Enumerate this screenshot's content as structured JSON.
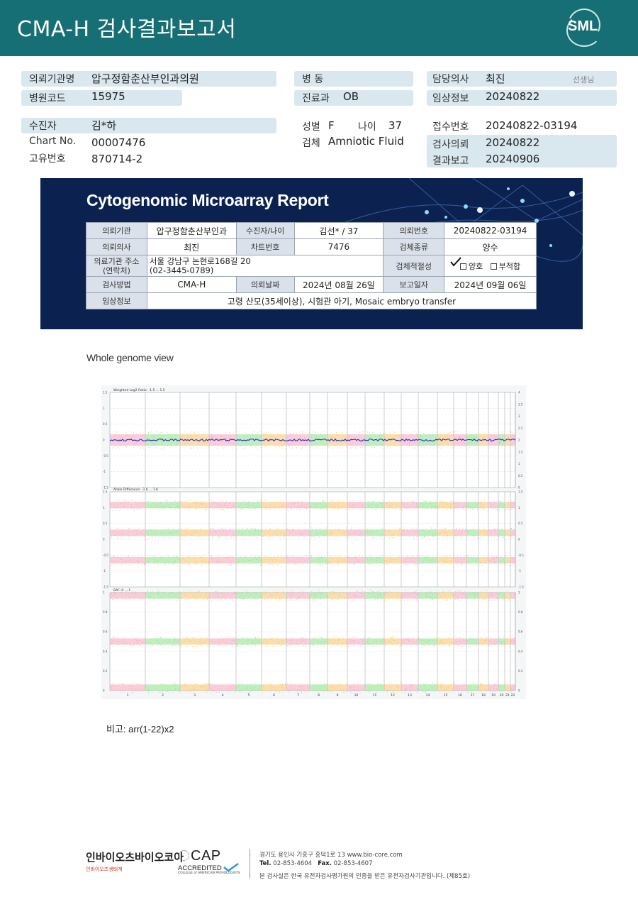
{
  "header": {
    "title": "CMA-H 검사결과보고서",
    "logo": "SML"
  },
  "patient": {
    "institution_label": "의뢰기관명",
    "institution": "압구정함춘산부인과의원",
    "hospital_code_label": "병원코드",
    "hospital_code": "15975",
    "ward_label": "병 동",
    "ward": "",
    "dept_label": "진료과",
    "dept": "OB",
    "doctor_label": "담당의사",
    "doctor": "최진",
    "doctor_suffix": "선생님",
    "clinical_label": "임상정보",
    "clinical": "20240822",
    "name_label": "수진자",
    "name": "김*하",
    "chart_label": "Chart No.",
    "chart_no": "00007476",
    "unique_label": "고유번호",
    "unique_no": "870714-2",
    "sex_label": "성별",
    "sex": "F",
    "age_label": "나이",
    "age": "37",
    "specimen_label": "검체",
    "specimen": "Amniotic Fluid",
    "receipt_label": "접수번호",
    "receipt_no": "20240822-03194",
    "request_label": "검사의뢰",
    "request_date": "20240822",
    "result_label": "결과보고",
    "result_date": "20240906"
  },
  "report": {
    "title": "Cytogenomic Microarray Report",
    "institution_label": "의뢰기관",
    "institution": "압구정함춘산부인과",
    "patient_label": "수진자/나이",
    "patient": "김선* / 37",
    "request_no_label": "의뢰번호",
    "request_no": "20240822-03194",
    "doctor_label": "의뢰의사",
    "doctor": "최진",
    "chart_label": "차트번호",
    "chart": "7476",
    "specimen_label": "검체종류",
    "specimen": "양수",
    "address_label": "의료기관 주소",
    "address_label2": "(연락처)",
    "address": "서울 강남구 논현로168길 20",
    "phone": "(02-3445-0789)",
    "adequacy_label": "검체적절성",
    "adequacy_good": "양호",
    "adequacy_bad": "부적합",
    "method_label": "검사방법",
    "method": "CMA-H",
    "request_date_label": "의뢰날짜",
    "request_date": "2024년 08월 26일",
    "report_date_label": "보고일자",
    "report_date": "2024년 09월 06일",
    "clinical_label": "임상정보",
    "clinical": "고령 산모(35세이상), 시험관 아기, Mosaic embryo transfer"
  },
  "section": {
    "title": "Whole genome view"
  },
  "chart_data": {
    "type": "scatter",
    "panels": [
      {
        "label": "Weighted Log2 Ratio: -1.5 ... 1.5",
        "ylim": [
          -1.5,
          1.5
        ],
        "yticks": [
          "1.5",
          "1",
          "0.5",
          "0",
          "-0.5",
          "-1",
          "-1.5"
        ],
        "right_ticks": [
          "4",
          "3.5",
          "3",
          "2.5",
          "2",
          "1.5",
          "1",
          "0.5",
          "0"
        ]
      },
      {
        "label": "Allele Difference: -1.6 ... 1.6",
        "ylim": [
          -1.6,
          1.6
        ],
        "yticks": [
          "1.5",
          "1",
          "0.5",
          "0",
          "-0.5",
          "-1",
          "-1.5"
        ],
        "right_ticks": [
          "1.5",
          "1",
          "0.5",
          "0",
          "-0.5",
          "-1",
          "-1.5"
        ]
      },
      {
        "label": "BAF: 0 ... 1",
        "ylim": [
          0,
          1
        ],
        "yticks": [
          "1",
          "0.8",
          "0.6",
          "0.4",
          "0.2",
          "0"
        ],
        "right_ticks": [
          "1",
          "0.8",
          "0.6",
          "0.4",
          "0.2",
          "0"
        ]
      }
    ],
    "x_ticks": [
      "1",
      "2",
      "3",
      "4",
      "5",
      "6",
      "7",
      "8",
      "9",
      "10",
      "11",
      "12",
      "13",
      "14",
      "15",
      "16",
      "17",
      "18",
      "19",
      "20",
      "21",
      "22"
    ],
    "chromosome_colors": [
      "#f4a6b8",
      "#8fe08a",
      "#f6c26b"
    ],
    "segment_color": "#1a1ad6"
  },
  "note": {
    "text": "비고: arr(1-22)x2"
  },
  "footer": {
    "lab_name": "인바이오츠바이오코아",
    "lab_sub": "인바이오츠생태계",
    "cap_text": "CAP",
    "cap_accredited": "ACCREDITED",
    "cap_college": "COLLEGE of AMERICAN PATHOLOGISTS",
    "address": "경기도 용인시 기흥구 흥덕1로 13    www.bio-core.com",
    "tel_label": "Tel.",
    "tel": "02-853-4604",
    "fax_label": "Fax.",
    "fax": "02-853-4607",
    "cert": "본 검사실은 한국 유전자검사평가원의 인증을 받은 유전자검사기관입니다. (제85호)"
  }
}
